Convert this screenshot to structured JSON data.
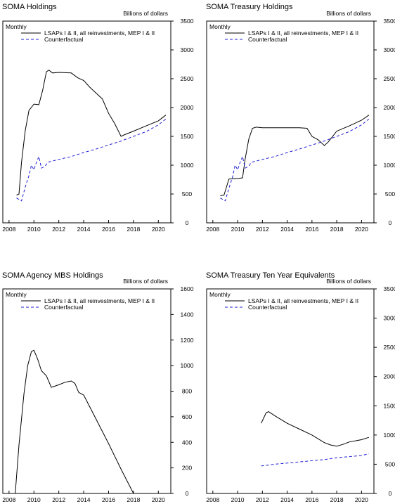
{
  "chart_data": [
    {
      "type": "line",
      "title": "SOMA Holdings",
      "ylabel": "Billions of dollars",
      "frequency_label": "Monthly",
      "legend": [
        "LSAPs I & II, all reinvestments, MEP I & II",
        "Counterfactual"
      ],
      "xlim": [
        2007.5,
        2021.0
      ],
      "ylim": [
        0,
        3500
      ],
      "x_ticks": [
        2008,
        2010,
        2012,
        2014,
        2016,
        2018,
        2020
      ],
      "y_ticks": [
        0,
        500,
        1000,
        1500,
        2000,
        2500,
        3000,
        3500
      ],
      "series": [
        {
          "name": "LSAPs I & II, all reinvestments, MEP I & II",
          "style": "solid",
          "points": [
            [
              2008.6,
              480
            ],
            [
              2008.8,
              500
            ],
            [
              2009.0,
              1050
            ],
            [
              2009.3,
              1600
            ],
            [
              2009.6,
              1950
            ],
            [
              2010.0,
              2060
            ],
            [
              2010.4,
              2050
            ],
            [
              2010.7,
              2300
            ],
            [
              2011.0,
              2620
            ],
            [
              2011.2,
              2650
            ],
            [
              2011.5,
              2600
            ],
            [
              2012.0,
              2610
            ],
            [
              2013.0,
              2600
            ],
            [
              2013.5,
              2520
            ],
            [
              2014.0,
              2470
            ],
            [
              2014.5,
              2350
            ],
            [
              2015.0,
              2250
            ],
            [
              2015.5,
              2150
            ],
            [
              2016.0,
              1900
            ],
            [
              2016.5,
              1720
            ],
            [
              2017.0,
              1500
            ],
            [
              2017.3,
              1530
            ],
            [
              2018.0,
              1590
            ],
            [
              2019.0,
              1680
            ],
            [
              2020.0,
              1770
            ],
            [
              2020.6,
              1870
            ]
          ]
        },
        {
          "name": "Counterfactual",
          "style": "dashed",
          "points": [
            [
              2008.6,
              430
            ],
            [
              2009.0,
              380
            ],
            [
              2009.3,
              620
            ],
            [
              2009.6,
              820
            ],
            [
              2009.8,
              1000
            ],
            [
              2010.0,
              920
            ],
            [
              2010.2,
              1050
            ],
            [
              2010.4,
              1150
            ],
            [
              2010.6,
              950
            ],
            [
              2010.9,
              980
            ],
            [
              2011.1,
              1050
            ],
            [
              2012.0,
              1100
            ],
            [
              2013.0,
              1150
            ],
            [
              2014.0,
              1220
            ],
            [
              2015.0,
              1280
            ],
            [
              2016.0,
              1350
            ],
            [
              2017.0,
              1420
            ],
            [
              2018.0,
              1500
            ],
            [
              2019.0,
              1580
            ],
            [
              2020.0,
              1700
            ],
            [
              2020.6,
              1800
            ]
          ]
        }
      ]
    },
    {
      "type": "line",
      "title": "SOMA Treasury Holdings",
      "ylabel": "Billions of dollars",
      "frequency_label": "Monthly",
      "legend": [
        "LSAPs I & II, all reinvestments, MEP I & II",
        "Counterfactual"
      ],
      "xlim": [
        2007.5,
        2021.0
      ],
      "ylim": [
        0,
        3500
      ],
      "x_ticks": [
        2008,
        2010,
        2012,
        2014,
        2016,
        2018,
        2020
      ],
      "y_ticks": [
        0,
        500,
        1000,
        1500,
        2000,
        2500,
        3000,
        3500
      ],
      "series": [
        {
          "name": "LSAPs I & II, all reinvestments, MEP I & II",
          "style": "solid",
          "points": [
            [
              2008.6,
              470
            ],
            [
              2008.9,
              480
            ],
            [
              2009.3,
              760
            ],
            [
              2010.0,
              770
            ],
            [
              2010.4,
              780
            ],
            [
              2010.6,
              1100
            ],
            [
              2010.9,
              1450
            ],
            [
              2011.2,
              1640
            ],
            [
              2011.5,
              1660
            ],
            [
              2012.0,
              1650
            ],
            [
              2013.0,
              1650
            ],
            [
              2014.0,
              1650
            ],
            [
              2015.0,
              1650
            ],
            [
              2015.6,
              1640
            ],
            [
              2016.0,
              1500
            ],
            [
              2016.5,
              1440
            ],
            [
              2017.0,
              1340
            ],
            [
              2017.3,
              1400
            ],
            [
              2018.0,
              1590
            ],
            [
              2019.0,
              1680
            ],
            [
              2020.0,
              1780
            ],
            [
              2020.6,
              1870
            ]
          ]
        },
        {
          "name": "Counterfactual",
          "style": "dashed",
          "points": [
            [
              2008.6,
              430
            ],
            [
              2009.0,
              380
            ],
            [
              2009.3,
              600
            ],
            [
              2009.6,
              800
            ],
            [
              2009.8,
              1000
            ],
            [
              2010.0,
              920
            ],
            [
              2010.2,
              1050
            ],
            [
              2010.4,
              1150
            ],
            [
              2010.6,
              950
            ],
            [
              2010.9,
              980
            ],
            [
              2011.1,
              1050
            ],
            [
              2012.0,
              1100
            ],
            [
              2013.0,
              1150
            ],
            [
              2014.0,
              1220
            ],
            [
              2015.0,
              1280
            ],
            [
              2016.0,
              1350
            ],
            [
              2017.0,
              1420
            ],
            [
              2018.0,
              1500
            ],
            [
              2019.0,
              1580
            ],
            [
              2020.0,
              1700
            ],
            [
              2020.6,
              1800
            ]
          ]
        }
      ]
    },
    {
      "type": "line",
      "title": "SOMA Agency MBS Holdings",
      "ylabel": "Billions of dollars",
      "frequency_label": "Monthly",
      "legend": [
        "LSAPs I & II, all reinvestments, MEP I & II",
        "Counterfactual"
      ],
      "xlim": [
        2007.5,
        2021.0
      ],
      "ylim": [
        0,
        1600
      ],
      "x_ticks": [
        2008,
        2010,
        2012,
        2014,
        2016,
        2018,
        2020
      ],
      "y_ticks": [
        0,
        200,
        400,
        600,
        800,
        1000,
        1200,
        1400,
        1600
      ],
      "series": [
        {
          "name": "LSAPs I & II, all reinvestments, MEP I & II",
          "style": "solid",
          "points": [
            [
              2007.5,
              0
            ],
            [
              2008.5,
              0
            ],
            [
              2008.8,
              380
            ],
            [
              2009.2,
              780
            ],
            [
              2009.5,
              1000
            ],
            [
              2009.8,
              1110
            ],
            [
              2010.0,
              1120
            ],
            [
              2010.3,
              1050
            ],
            [
              2010.6,
              960
            ],
            [
              2011.0,
              920
            ],
            [
              2011.4,
              830
            ],
            [
              2012.0,
              850
            ],
            [
              2012.5,
              870
            ],
            [
              2013.0,
              880
            ],
            [
              2013.3,
              860
            ],
            [
              2013.6,
              790
            ],
            [
              2014.0,
              770
            ],
            [
              2015.0,
              580
            ],
            [
              2016.0,
              390
            ],
            [
              2017.0,
              190
            ],
            [
              2018.0,
              0
            ],
            [
              2021.0,
              0
            ]
          ]
        }
      ]
    },
    {
      "type": "line",
      "title": "SOMA Treasury Ten Year Equivalents",
      "ylabel": "Billions of dollars",
      "frequency_label": "Monthly",
      "legend": [
        "LSAPs I & II, all reinvestments, MEP I & II",
        "Counterfactual"
      ],
      "xlim": [
        2007.5,
        2021.0
      ],
      "ylim": [
        0,
        3500
      ],
      "x_ticks": [
        2008,
        2010,
        2012,
        2014,
        2016,
        2018,
        2020
      ],
      "y_ticks": [
        0,
        500,
        1000,
        1500,
        2000,
        2500,
        3000,
        3500
      ],
      "series": [
        {
          "name": "LSAPs I & II, all reinvestments, MEP I & II",
          "style": "solid",
          "points": [
            [
              2011.9,
              1200
            ],
            [
              2012.3,
              1380
            ],
            [
              2012.5,
              1400
            ],
            [
              2013.0,
              1330
            ],
            [
              2014.0,
              1200
            ],
            [
              2015.0,
              1100
            ],
            [
              2016.0,
              1000
            ],
            [
              2017.0,
              870
            ],
            [
              2017.5,
              830
            ],
            [
              2018.0,
              810
            ],
            [
              2018.5,
              840
            ],
            [
              2019.0,
              880
            ],
            [
              2020.0,
              920
            ],
            [
              2020.6,
              960
            ]
          ]
        },
        {
          "name": "Counterfactual",
          "style": "dashed",
          "points": [
            [
              2011.9,
              470
            ],
            [
              2013.0,
              500
            ],
            [
              2014.0,
              520
            ],
            [
              2015.0,
              540
            ],
            [
              2016.0,
              560
            ],
            [
              2017.0,
              580
            ],
            [
              2018.0,
              610
            ],
            [
              2019.0,
              630
            ],
            [
              2020.0,
              650
            ],
            [
              2020.6,
              680
            ]
          ]
        }
      ]
    }
  ]
}
